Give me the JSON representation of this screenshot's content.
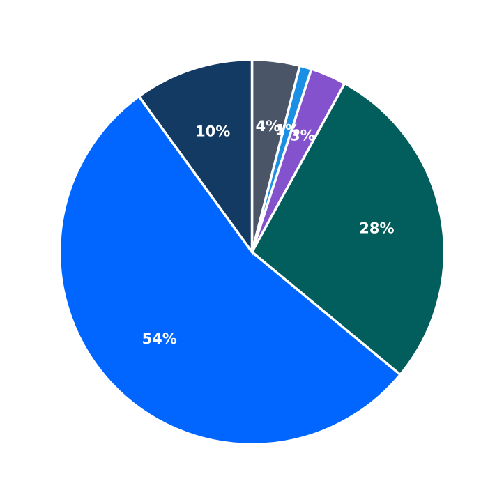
{
  "chart_data": {
    "type": "pie",
    "title": "",
    "start_angle_deg": 90,
    "direction": "clockwise",
    "slices": [
      {
        "label": "4%",
        "value": 4,
        "color": "#4a5568"
      },
      {
        "label": "1%",
        "value": 1,
        "color": "#1a8fe3"
      },
      {
        "label": "3%",
        "value": 3,
        "color": "#8352cc"
      },
      {
        "label": "28%",
        "value": 28,
        "color": "#025e5c"
      },
      {
        "label": "54%",
        "value": 54,
        "color": "#0066ff"
      },
      {
        "label": "10%",
        "value": 10,
        "color": "#133a63"
      }
    ]
  }
}
